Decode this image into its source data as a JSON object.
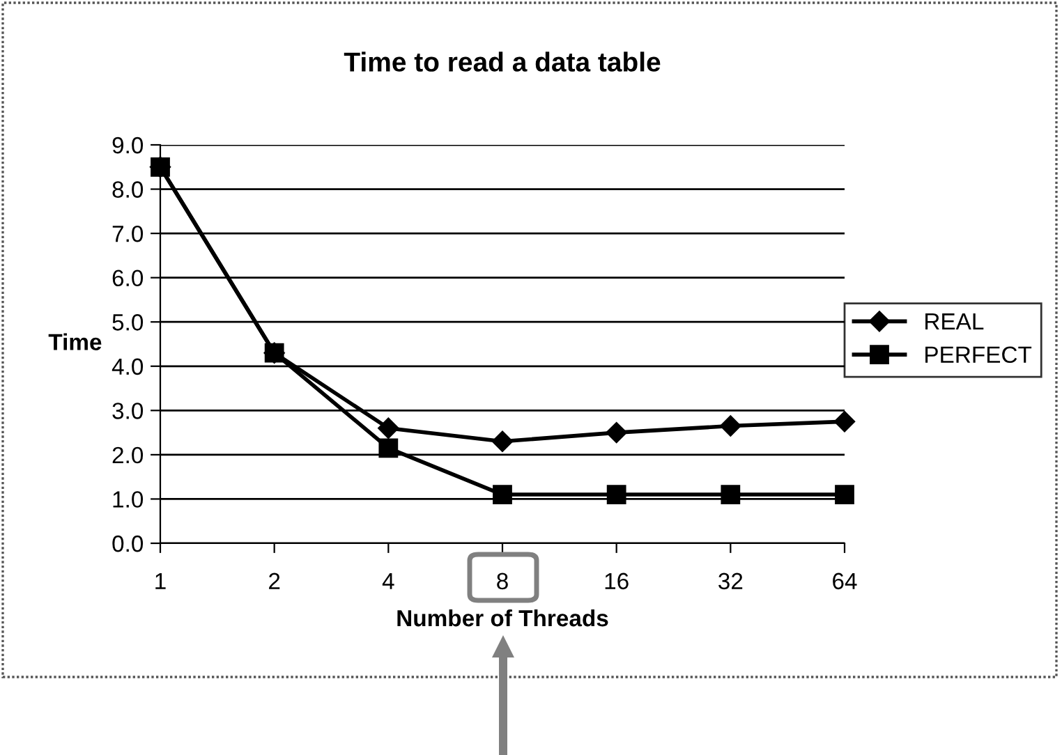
{
  "chart_data": {
    "type": "line",
    "title": "Time to read a data table",
    "xlabel": "Number of Threads",
    "ylabel": "Time",
    "categories": [
      "1",
      "2",
      "4",
      "8",
      "16",
      "32",
      "64"
    ],
    "series": [
      {
        "name": "REAL",
        "color": "#000000",
        "marker": "diamond",
        "values": [
          8.5,
          4.3,
          2.6,
          2.3,
          2.5,
          2.65,
          2.75
        ]
      },
      {
        "name": "PERFECT",
        "color": "#000000",
        "marker": "square",
        "values": [
          8.5,
          4.3,
          2.15,
          1.1,
          1.1,
          1.1,
          1.1
        ]
      }
    ],
    "ylim": [
      0,
      9
    ],
    "yticks": [
      {
        "value": 0,
        "label": "0.0"
      },
      {
        "value": 1,
        "label": "1.0"
      },
      {
        "value": 2,
        "label": "2.0"
      },
      {
        "value": 3,
        "label": "3.0"
      },
      {
        "value": 4,
        "label": "4.0"
      },
      {
        "value": 5,
        "label": "5.0"
      },
      {
        "value": 6,
        "label": "6.0"
      },
      {
        "value": 7,
        "label": "7.0"
      },
      {
        "value": 8,
        "label": "8.0"
      },
      {
        "value": 9,
        "label": "9.0"
      }
    ],
    "grid": "y",
    "legend": "right",
    "line_style": "solid"
  }
}
